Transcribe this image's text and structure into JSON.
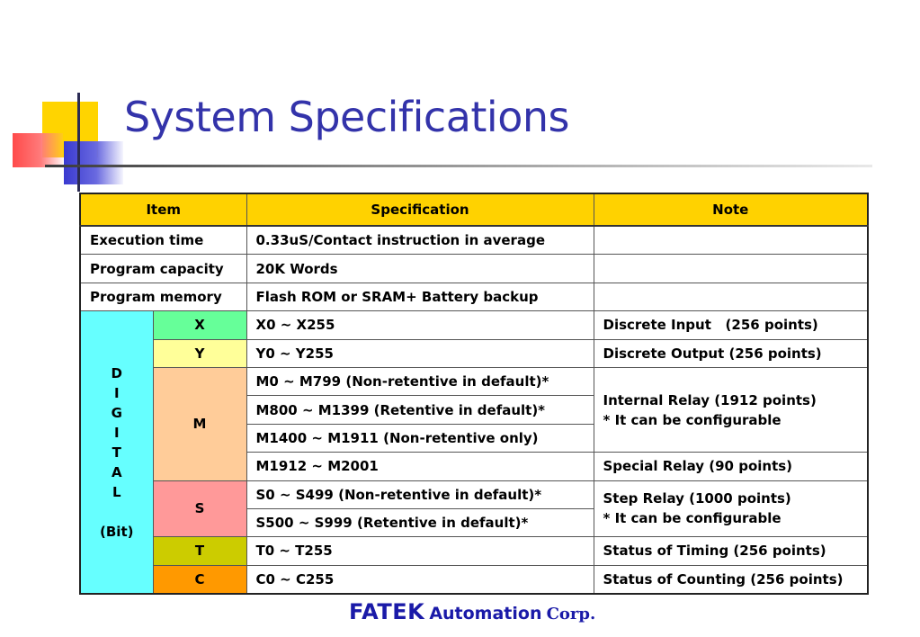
{
  "title": "System Specifications",
  "table": {
    "headers": [
      "Item",
      "Specification",
      "Note"
    ],
    "general_rows": [
      {
        "item": "Execution time",
        "spec": "0.33uS/Contact instruction in average",
        "note": ""
      },
      {
        "item": "Program capacity",
        "spec": "20K Words",
        "note": ""
      },
      {
        "item": "Program memory",
        "spec": "Flash ROM or SRAM+ Battery backup",
        "note": ""
      }
    ],
    "side_label_letters": [
      "D",
      "I",
      "G",
      "I",
      "T",
      "A",
      "L"
    ],
    "side_label_sub": "(Bit)",
    "digital": {
      "x": {
        "code": "X",
        "spec": "X0 ~ X255",
        "note": "Discrete Input   (256 points)"
      },
      "y": {
        "code": "Y",
        "spec": "Y0 ~ Y255",
        "note": "Discrete Output (256 points)"
      },
      "m": {
        "code": "M",
        "specs": [
          "M0 ~ M799 (Non-retentive in default)*",
          "M800 ~ M1399 (Retentive in default)*",
          "M1400 ~ M1911 (Non-retentive only)",
          "M1912 ~ M2001"
        ],
        "note_line1": "Internal Relay (1912 points)",
        "note_line2": "* It can be configurable",
        "note_special": "Special Relay (90 points)"
      },
      "s": {
        "code": "S",
        "specs": [
          "S0 ~ S499 (Non-retentive in default)*",
          "S500 ~ S999 (Retentive in default)*"
        ],
        "note_line1": "Step Relay (1000 points)",
        "note_line2": "* It can be configurable"
      },
      "t": {
        "code": "T",
        "spec": "T0 ~ T255",
        "note": "Status of Timing (256 points)"
      },
      "c": {
        "code": "C",
        "spec": "C0 ~ C255",
        "note": "Status of Counting (256 points)"
      }
    }
  },
  "footer": {
    "brand": "FATEK",
    "automation": "Automation",
    "corp": "Corp."
  },
  "colors": {
    "title": "#3333aa",
    "header_bg": "#ffd200",
    "digital_side_bg": "#66ffff",
    "x_bg": "#66ff99",
    "y_bg": "#ffff99",
    "m_bg": "#ffcc99",
    "s_bg": "#ff9999",
    "t_bg": "#cccc00",
    "c_bg": "#ff9900",
    "footer": "#1a1aa8"
  }
}
